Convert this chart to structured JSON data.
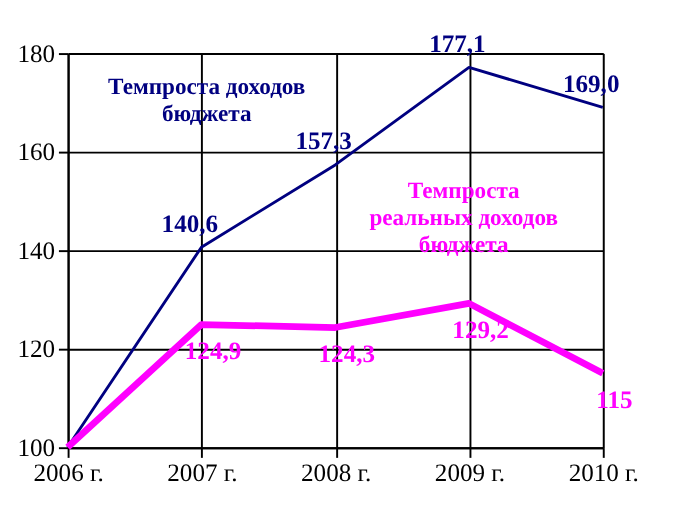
{
  "chart_data": {
    "type": "line",
    "categories": [
      "2006 г.",
      "2007 г.",
      "2008 г.",
      "2009 г.",
      "2010 г."
    ],
    "series": [
      {
        "name": "Темпроста доходов\nбюджета",
        "color": "#000080",
        "values": [
          100,
          140.6,
          157.3,
          177.1,
          169.0
        ],
        "value_labels": [
          null,
          "140,6",
          "157,3",
          "177,1",
          "169,0"
        ]
      },
      {
        "name": "Темпроста\nреальных доходов\nбюджета",
        "color": "#ff00ff",
        "values": [
          100,
          124.9,
          124.3,
          129.2,
          115
        ],
        "value_labels": [
          null,
          "124,9",
          "124,3",
          "129,2",
          "115"
        ]
      }
    ],
    "ylim": [
      100,
      180
    ],
    "yticks": [
      100,
      120,
      140,
      160,
      180
    ],
    "grid": true,
    "marker": "none",
    "line_style": "solid"
  }
}
